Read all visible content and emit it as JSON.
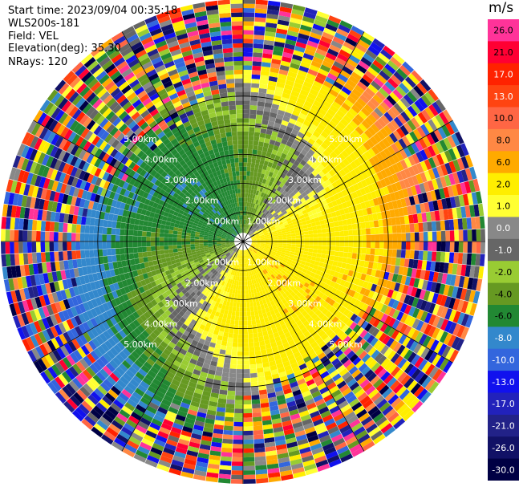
{
  "header": {
    "start_time": "Start time: 2023/09/04 00:35:18",
    "instrument": "WLS200s-181",
    "field": "Field: VEL",
    "elevation": "Elevation(deg): 35.30",
    "nrays": "NRays: 120"
  },
  "colorbar": {
    "unit": "m/s",
    "ticks": [
      "26.0",
      "21.0",
      "17.0",
      "13.0",
      "10.0",
      "8.0",
      "6.0",
      "2.0",
      "1.0",
      "0.0",
      "-1.0",
      "-2.0",
      "-4.0",
      "-6.0",
      "-8.0",
      "-10.0",
      "-13.0",
      "-17.0",
      "-21.0",
      "-26.0",
      "-30.0"
    ],
    "colors": [
      "#ff3399",
      "#ff0033",
      "#ff2200",
      "#ff4411",
      "#ff6644",
      "#ff8844",
      "#ffaa00",
      "#ffee00",
      "#ffff33",
      "#888888",
      "#666666",
      "#99cc33",
      "#669922",
      "#228833",
      "#3388cc",
      "#3366dd",
      "#1111ee",
      "#2222bb",
      "#222288",
      "#111166",
      "#000044"
    ]
  },
  "chart_data": {
    "type": "heatmap",
    "title": "",
    "field": "VEL",
    "units": "m/s",
    "projection": "polar PPI (range rings, azimuth rays)",
    "n_rays": 120,
    "range_ring_labels": [
      "1.00km",
      "2.00km",
      "3.00km",
      "4.00km",
      "5.00km"
    ],
    "range_ring_km": [
      1,
      2,
      3,
      4,
      5
    ],
    "max_range_km": 5.0,
    "color_scale": {
      "levels": [
        -30,
        -26,
        -21,
        -17,
        -13,
        -10,
        -8,
        -6,
        -4,
        -2,
        -1,
        0,
        1,
        2,
        6,
        8,
        10,
        13,
        17,
        21,
        26
      ],
      "label_order_top_to_bottom": [
        "26.0",
        "21.0",
        "17.0",
        "13.0",
        "10.0",
        "8.0",
        "6.0",
        "2.0",
        "1.0",
        "0.0",
        "-1.0",
        "-2.0",
        "-4.0",
        "-6.0",
        "-8.0",
        "-10.0",
        "-13.0",
        "-17.0",
        "-21.0",
        "-26.0",
        "-30.0"
      ]
    },
    "wind_pattern": {
      "approaching_sector": "north-west to west (negative velocities, blue/green)",
      "receding_sector": "south-east to east (positive velocities, yellow/orange/red)",
      "outer_region": "noise (random colors) beyond ~3.5 km"
    }
  }
}
